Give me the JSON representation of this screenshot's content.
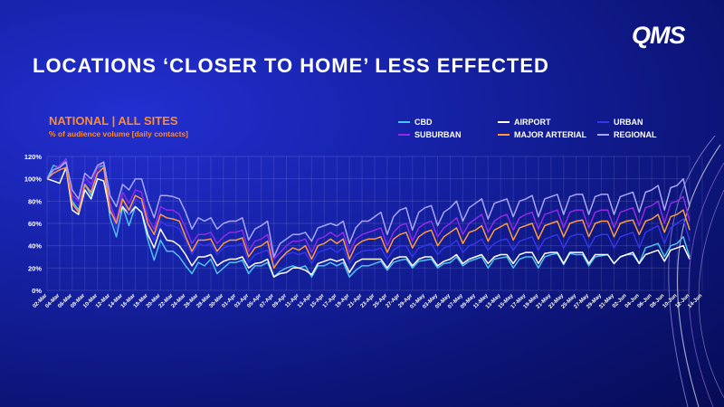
{
  "slide": {
    "title": "LOCATIONS ‘CLOSER TO HOME’ LESS EFFECTED",
    "logo": "QMS"
  },
  "chart_data": {
    "type": "line",
    "title": "NATIONAL | ALL SITES",
    "subtitle": "% of audience volume [daily contacts]",
    "xlabel": "",
    "ylabel": "",
    "ylim": [
      0,
      120
    ],
    "y_ticks": [
      0,
      20,
      40,
      60,
      80,
      100,
      120
    ],
    "y_tick_labels": [
      "0%",
      "20%",
      "40%",
      "60%",
      "80%",
      "100%",
      "120%"
    ],
    "grid": true,
    "legend_position": "top-right",
    "x_tick_labels": [
      "02-Mar",
      "04-Mar",
      "06-Mar",
      "08-Mar",
      "10-Mar",
      "12-Mar",
      "14-Mar",
      "16-Mar",
      "18-Mar",
      "20-Mar",
      "22-Mar",
      "24-Mar",
      "26-Mar",
      "28-Mar",
      "30-Mar",
      "01-Apr",
      "03-Apr",
      "05-Apr",
      "07-Apr",
      "09-Apr",
      "11-Apr",
      "13-Apr",
      "15-Apr",
      "17-Apr",
      "19-Apr",
      "21-Apr",
      "23-Apr",
      "25-Apr",
      "27-Apr",
      "29-Apr",
      "01-May",
      "03-May",
      "05-May",
      "07-May",
      "09-May",
      "11-May",
      "13-May",
      "15-May",
      "17-May",
      "19-May",
      "21-May",
      "23-May",
      "25-May",
      "27-May",
      "29-May",
      "31-May",
      "02-Jun",
      "04-Jun",
      "06-Jun",
      "08-Jun",
      "10-Jun",
      "12-Jun",
      "14-Jun"
    ],
    "series": [
      {
        "name": "CBD",
        "color": "#4ec3f0",
        "values": [
          100,
          112,
          110,
          118,
          80,
          72,
          95,
          85,
          110,
          112,
          65,
          48,
          75,
          58,
          75,
          70,
          45,
          27,
          45,
          35,
          35,
          30,
          22,
          15,
          25,
          22,
          28,
          15,
          20,
          25,
          25,
          27,
          15,
          22,
          22,
          25,
          12,
          17,
          20,
          22,
          20,
          22,
          12,
          22,
          22,
          25,
          22,
          25,
          12,
          18,
          22,
          22,
          24,
          26,
          18,
          25,
          27,
          28,
          20,
          26,
          27,
          28,
          20,
          24,
          25,
          30,
          22,
          26,
          28,
          30,
          20,
          28,
          29,
          30,
          20,
          28,
          30,
          30,
          20,
          30,
          32,
          33,
          23,
          33,
          32,
          32,
          22,
          30,
          31,
          32,
          24,
          30,
          32,
          32,
          24,
          38,
          40,
          42,
          30,
          40,
          42,
          48,
          30
        ]
      },
      {
        "name": "AIRPORT",
        "color": "#ffffff",
        "values": [
          100,
          98,
          96,
          110,
          72,
          68,
          90,
          82,
          100,
          98,
          70,
          62,
          75,
          68,
          75,
          70,
          50,
          38,
          55,
          45,
          44,
          40,
          32,
          22,
          30,
          30,
          32,
          22,
          26,
          28,
          28,
          30,
          20,
          24,
          25,
          28,
          12,
          15,
          16,
          20,
          20,
          18,
          14,
          24,
          26,
          28,
          26,
          28,
          16,
          25,
          28,
          28,
          28,
          28,
          20,
          28,
          30,
          30,
          22,
          28,
          30,
          30,
          22,
          26,
          28,
          32,
          24,
          28,
          30,
          32,
          24,
          30,
          32,
          32,
          24,
          32,
          34,
          34,
          24,
          33,
          34,
          34,
          24,
          34,
          34,
          34,
          24,
          32,
          32,
          32,
          24,
          30,
          32,
          34,
          24,
          32,
          34,
          36,
          26,
          36,
          38,
          40,
          28
        ]
      },
      {
        "name": "URBAN",
        "color": "#3535ea",
        "values": [
          100,
          108,
          110,
          115,
          82,
          76,
          100,
          92,
          108,
          110,
          72,
          55,
          82,
          68,
          82,
          78,
          55,
          45,
          62,
          58,
          58,
          55,
          45,
          32,
          42,
          40,
          42,
          32,
          38,
          40,
          40,
          42,
          25,
          32,
          34,
          36,
          22,
          28,
          32,
          34,
          32,
          34,
          24,
          34,
          36,
          38,
          34,
          38,
          24,
          32,
          35,
          36,
          36,
          38,
          28,
          36,
          40,
          40,
          30,
          38,
          40,
          42,
          32,
          38,
          40,
          45,
          34,
          40,
          42,
          46,
          36,
          42,
          45,
          46,
          36,
          44,
          46,
          48,
          36,
          46,
          48,
          50,
          38,
          48,
          50,
          50,
          38,
          48,
          50,
          50,
          38,
          48,
          50,
          52,
          38,
          52,
          55,
          58,
          42,
          56,
          60,
          64,
          44
        ]
      },
      {
        "name": "SUBURBAN",
        "color": "#8e2be6",
        "values": [
          100,
          108,
          112,
          118,
          85,
          80,
          102,
          95,
          110,
          115,
          78,
          62,
          88,
          78,
          90,
          88,
          65,
          55,
          75,
          72,
          72,
          68,
          56,
          42,
          50,
          50,
          52,
          42,
          48,
          52,
          52,
          54,
          35,
          44,
          46,
          50,
          28,
          34,
          40,
          44,
          44,
          46,
          34,
          46,
          48,
          52,
          48,
          52,
          34,
          46,
          50,
          52,
          54,
          56,
          40,
          52,
          58,
          60,
          44,
          56,
          60,
          62,
          48,
          56,
          60,
          65,
          50,
          60,
          64,
          68,
          52,
          62,
          66,
          68,
          54,
          65,
          68,
          70,
          55,
          68,
          70,
          72,
          56,
          70,
          72,
          72,
          56,
          70,
          72,
          72,
          56,
          70,
          72,
          74,
          58,
          74,
          76,
          80,
          60,
          78,
          80,
          84,
          62
        ]
      },
      {
        "name": "MAJOR ARTERIAL",
        "color": "#ff9940",
        "values": [
          100,
          105,
          108,
          110,
          78,
          70,
          95,
          88,
          105,
          110,
          72,
          60,
          82,
          72,
          85,
          82,
          60,
          50,
          68,
          65,
          64,
          62,
          48,
          35,
          45,
          45,
          46,
          35,
          42,
          45,
          45,
          47,
          30,
          38,
          40,
          44,
          20,
          28,
          34,
          38,
          36,
          40,
          28,
          40,
          42,
          46,
          42,
          46,
          28,
          40,
          44,
          46,
          46,
          48,
          34,
          46,
          50,
          52,
          38,
          48,
          52,
          54,
          40,
          48,
          52,
          56,
          42,
          52,
          54,
          58,
          44,
          54,
          57,
          60,
          45,
          56,
          58,
          60,
          46,
          58,
          60,
          62,
          48,
          60,
          62,
          63,
          48,
          60,
          62,
          62,
          48,
          60,
          62,
          63,
          50,
          62,
          64,
          68,
          52,
          66,
          68,
          72,
          54
        ]
      },
      {
        "name": "REGIONAL",
        "color": "#a9a6f7",
        "values": [
          100,
          108,
          110,
          115,
          90,
          82,
          105,
          100,
          112,
          115,
          85,
          75,
          95,
          90,
          100,
          100,
          80,
          65,
          85,
          85,
          84,
          82,
          70,
          55,
          65,
          62,
          65,
          55,
          60,
          62,
          62,
          65,
          45,
          55,
          58,
          62,
          30,
          42,
          46,
          50,
          50,
          52,
          44,
          56,
          58,
          60,
          58,
          62,
          42,
          56,
          62,
          62,
          66,
          70,
          50,
          66,
          72,
          74,
          54,
          70,
          74,
          76,
          58,
          70,
          74,
          80,
          62,
          74,
          78,
          82,
          64,
          78,
          80,
          82,
          66,
          80,
          82,
          85,
          66,
          82,
          84,
          86,
          68,
          84,
          86,
          86,
          68,
          84,
          86,
          86,
          68,
          84,
          86,
          88,
          70,
          88,
          90,
          94,
          72,
          92,
          94,
          100,
          75
        ]
      }
    ]
  }
}
